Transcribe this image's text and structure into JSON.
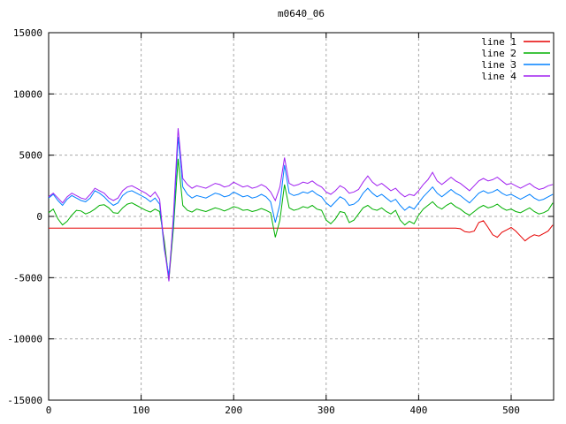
{
  "window": {
    "background": "#ffffff"
  },
  "chart_data": {
    "type": "line",
    "title": "m0640_06",
    "xlabel": "",
    "ylabel": "",
    "xlim": [
      0,
      546
    ],
    "ylim": [
      -15000,
      15000
    ],
    "x_ticks": [
      0,
      100,
      200,
      300,
      400,
      500
    ],
    "y_ticks": [
      -15000,
      -10000,
      -5000,
      0,
      5000,
      10000,
      15000
    ],
    "grid": true,
    "grid_color": "#a8a8a8",
    "border_color": "#000000",
    "legend_position": "top-right-inside",
    "x_step": 5,
    "series": [
      {
        "name": "line 1",
        "color": "#e60000",
        "values": [
          -950,
          -950,
          -950,
          -950,
          -950,
          -950,
          -950,
          -950,
          -950,
          -950,
          -950,
          -950,
          -950,
          -950,
          -950,
          -950,
          -950,
          -950,
          -950,
          -950,
          -950,
          -950,
          -950,
          -950,
          -950,
          -950,
          -950,
          -950,
          -950,
          -950,
          -950,
          -950,
          -950,
          -950,
          -950,
          -950,
          -950,
          -950,
          -950,
          -950,
          -950,
          -950,
          -950,
          -950,
          -950,
          -950,
          -950,
          -950,
          -950,
          -950,
          -950,
          -950,
          -950,
          -950,
          -950,
          -950,
          -950,
          -950,
          -950,
          -950,
          -950,
          -950,
          -950,
          -950,
          -950,
          -950,
          -950,
          -950,
          -950,
          -950,
          -950,
          -950,
          -950,
          -950,
          -950,
          -950,
          -950,
          -950,
          -950,
          -950,
          -950,
          -950,
          -950,
          -950,
          -950,
          -950,
          -950,
          -950,
          -950,
          -1000,
          -1250,
          -1300,
          -1200,
          -500,
          -350,
          -900,
          -1500,
          -1700,
          -1300,
          -1100,
          -900,
          -1200,
          -1600,
          -2000,
          -1700,
          -1500,
          -1600,
          -1400,
          -1200,
          -700
        ]
      },
      {
        "name": "line 2",
        "color": "#00b000",
        "values": [
          300,
          600,
          -200,
          -700,
          -400,
          100,
          500,
          450,
          200,
          350,
          600,
          900,
          950,
          700,
          300,
          250,
          700,
          1000,
          1100,
          900,
          700,
          500,
          350,
          600,
          400,
          -2000,
          -5200,
          -900,
          4700,
          900,
          500,
          350,
          600,
          500,
          400,
          550,
          700,
          600,
          450,
          600,
          800,
          700,
          500,
          550,
          400,
          500,
          650,
          500,
          300,
          -1700,
          -300,
          2600,
          700,
          500,
          600,
          800,
          700,
          900,
          600,
          500,
          -300,
          -600,
          -200,
          400,
          300,
          -500,
          -300,
          200,
          700,
          900,
          600,
          500,
          700,
          400,
          200,
          500,
          -300,
          -700,
          -400,
          -600,
          100,
          600,
          900,
          1200,
          800,
          600,
          900,
          1100,
          800,
          600,
          300,
          100,
          400,
          700,
          900,
          700,
          800,
          1000,
          700,
          500,
          600,
          400,
          300,
          500,
          700,
          400,
          200,
          300,
          500,
          1100
        ]
      },
      {
        "name": "line 3",
        "color": "#0080ff",
        "values": [
          1500,
          1800,
          1300,
          900,
          1400,
          1700,
          1500,
          1300,
          1200,
          1500,
          2100,
          1900,
          1600,
          1200,
          900,
          1100,
          1700,
          2000,
          2100,
          1900,
          1700,
          1500,
          1200,
          1500,
          1000,
          -2700,
          -4800,
          -400,
          6500,
          2400,
          1800,
          1500,
          1700,
          1600,
          1500,
          1700,
          1900,
          1800,
          1600,
          1700,
          2000,
          1800,
          1600,
          1700,
          1500,
          1600,
          1800,
          1600,
          1200,
          -500,
          1000,
          4200,
          1900,
          1700,
          1800,
          2000,
          1900,
          2100,
          1800,
          1600,
          1100,
          800,
          1200,
          1600,
          1400,
          900,
          1000,
          1300,
          1900,
          2300,
          1900,
          1600,
          1800,
          1500,
          1200,
          1400,
          900,
          500,
          800,
          600,
          1100,
          1600,
          2000,
          2400,
          1900,
          1600,
          1900,
          2200,
          1900,
          1700,
          1400,
          1100,
          1500,
          1900,
          2100,
          1900,
          2000,
          2200,
          1900,
          1700,
          1800,
          1600,
          1400,
          1600,
          1800,
          1500,
          1300,
          1400,
          1600,
          1800
        ]
      },
      {
        "name": "line 4",
        "color": "#a020f0",
        "values": [
          1600,
          1900,
          1500,
          1100,
          1600,
          1900,
          1700,
          1500,
          1400,
          1800,
          2300,
          2100,
          1900,
          1500,
          1300,
          1500,
          2100,
          2400,
          2500,
          2300,
          2100,
          1900,
          1600,
          2000,
          1400,
          -2500,
          -5300,
          200,
          7200,
          3100,
          2600,
          2300,
          2500,
          2400,
          2300,
          2500,
          2700,
          2600,
          2400,
          2500,
          2800,
          2600,
          2400,
          2500,
          2300,
          2400,
          2600,
          2400,
          2000,
          1300,
          2400,
          4800,
          2700,
          2500,
          2600,
          2800,
          2700,
          2900,
          2600,
          2400,
          2000,
          1800,
          2100,
          2500,
          2300,
          1900,
          2000,
          2200,
          2800,
          3300,
          2800,
          2500,
          2700,
          2400,
          2100,
          2300,
          1900,
          1600,
          1800,
          1700,
          2100,
          2600,
          3000,
          3600,
          2900,
          2600,
          2900,
          3200,
          2900,
          2700,
          2400,
          2100,
          2500,
          2900,
          3100,
          2900,
          3000,
          3200,
          2900,
          2600,
          2700,
          2500,
          2300,
          2500,
          2700,
          2400,
          2200,
          2300,
          2500,
          2600
        ]
      }
    ]
  }
}
